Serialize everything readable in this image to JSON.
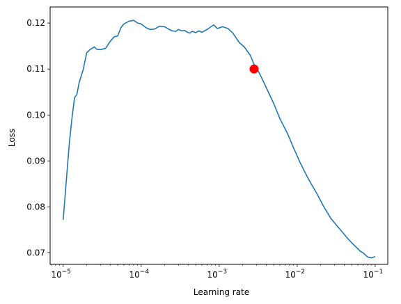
{
  "chart_data": {
    "type": "line",
    "title": "",
    "xlabel": "Learning rate",
    "ylabel": "Loss",
    "xscale": "log",
    "xlim": [
      6.8e-06,
      0.145
    ],
    "ylim": [
      0.0675,
      0.1235
    ],
    "grid": false,
    "x_ticks": [
      {
        "value": 1e-05,
        "base": "10",
        "exp": "−5"
      },
      {
        "value": 0.0001,
        "base": "10",
        "exp": "−4"
      },
      {
        "value": 0.001,
        "base": "10",
        "exp": "−3"
      },
      {
        "value": 0.01,
        "base": "10",
        "exp": "−2"
      },
      {
        "value": 0.1,
        "base": "10",
        "exp": "−1"
      }
    ],
    "y_ticks": [
      {
        "value": 0.07,
        "label": "0.07"
      },
      {
        "value": 0.08,
        "label": "0.08"
      },
      {
        "value": 0.09,
        "label": "0.09"
      },
      {
        "value": 0.1,
        "label": "0.10"
      },
      {
        "value": 0.11,
        "label": "0.11"
      },
      {
        "value": 0.12,
        "label": "0.12"
      }
    ],
    "colors": {
      "line": "#1f77b4",
      "marker": "#ff0000"
    },
    "series": [
      {
        "x": [
          1e-05,
          1.1e-05,
          1.2e-05,
          1.3e-05,
          1.4e-05,
          1.5e-05,
          1.6e-05,
          1.8e-05,
          2e-05,
          2.2e-05,
          2.5e-05,
          2.7e-05,
          3e-05,
          3.5e-05,
          4e-05,
          4.5e-05,
          5e-05,
          5.5e-05,
          6e-05,
          7e-05,
          8e-05,
          9e-05,
          0.0001,
          0.000115,
          0.00013,
          0.00015,
          0.00017,
          0.0002,
          0.00023,
          0.00025,
          0.00028,
          0.0003,
          0.00033,
          0.00036,
          0.00039,
          0.00042,
          0.00045,
          0.0005,
          0.00055,
          0.0006,
          0.0007,
          0.0008,
          0.00085,
          0.00095,
          0.0011,
          0.0013,
          0.0015,
          0.0018,
          0.0021,
          0.0025,
          0.0028,
          0.0033,
          0.004,
          0.005,
          0.006,
          0.0075,
          0.009,
          0.011,
          0.014,
          0.018,
          0.022,
          0.027,
          0.032,
          0.038,
          0.045,
          0.055,
          0.065,
          0.07,
          0.08,
          0.09,
          0.1
        ],
        "y": [
          0.0772,
          0.086,
          0.094,
          0.0995,
          0.1038,
          0.1045,
          0.107,
          0.1098,
          0.1135,
          0.1142,
          0.1148,
          0.1143,
          0.1142,
          0.1145,
          0.116,
          0.117,
          0.1172,
          0.119,
          0.1198,
          0.1204,
          0.1206,
          0.12,
          0.1198,
          0.119,
          0.1186,
          0.1187,
          0.1193,
          0.1192,
          0.1186,
          0.1183,
          0.1182,
          0.1186,
          0.1183,
          0.1184,
          0.118,
          0.1178,
          0.1182,
          0.1179,
          0.1183,
          0.118,
          0.1186,
          0.1193,
          0.1196,
          0.1188,
          0.1192,
          0.1188,
          0.1178,
          0.1158,
          0.1148,
          0.113,
          0.111,
          0.109,
          0.106,
          0.1025,
          0.0992,
          0.096,
          0.0928,
          0.0895,
          0.086,
          0.0828,
          0.08,
          0.0775,
          0.076,
          0.0745,
          0.073,
          0.0715,
          0.0703,
          0.07,
          0.0691,
          0.0689,
          0.0692
        ]
      }
    ],
    "marker": {
      "x": 0.0028,
      "y": 0.11
    }
  }
}
